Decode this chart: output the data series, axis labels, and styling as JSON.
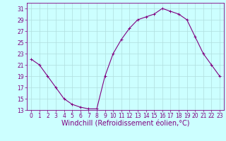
{
  "x": [
    0,
    1,
    2,
    3,
    4,
    5,
    6,
    7,
    8,
    9,
    10,
    11,
    12,
    13,
    14,
    15,
    16,
    17,
    18,
    19,
    20,
    21,
    22,
    23
  ],
  "y": [
    22,
    21,
    19,
    17,
    15,
    14,
    13.5,
    13.2,
    13.2,
    19,
    23,
    25.5,
    27.5,
    29,
    29.5,
    30,
    31,
    30.5,
    30,
    29,
    26,
    23,
    21,
    19
  ],
  "line_color": "#800080",
  "marker": "+",
  "marker_color": "#800080",
  "bg_color": "#ccffff",
  "grid_color": "#b0dddd",
  "xlabel": "Windchill (Refroidissement éolien,°C)",
  "ylim": [
    13,
    32
  ],
  "yticks": [
    13,
    15,
    17,
    19,
    21,
    23,
    25,
    27,
    29,
    31
  ],
  "xticks": [
    0,
    1,
    2,
    3,
    4,
    5,
    6,
    7,
    8,
    9,
    10,
    11,
    12,
    13,
    14,
    15,
    16,
    17,
    18,
    19,
    20,
    21,
    22,
    23
  ],
  "xlim": [
    -0.5,
    23.5
  ],
  "tick_color": "#800080",
  "tick_fontsize": 5.5,
  "xlabel_fontsize": 7,
  "axis_color": "#800080",
  "linewidth": 0.8,
  "markersize": 3.0,
  "markeredgewidth": 0.7
}
